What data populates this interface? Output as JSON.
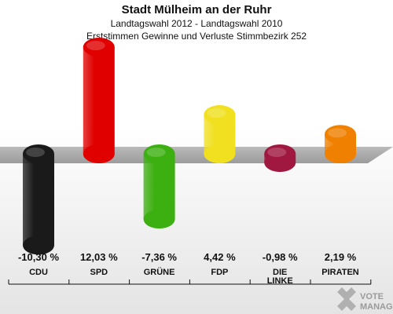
{
  "chart_data": {
    "type": "bar",
    "title": "Stadt Mülheim an der Ruhr",
    "subtitle": "Landtagswahl 2012 - Landtagswahl 2010",
    "subtitle2": "Erststimmen Gewinne und Verluste Stimmbezirk 252",
    "categories": [
      "CDU",
      "SPD",
      "GRÜNE",
      "FDP",
      "DIE LINKE",
      "PIRATEN"
    ],
    "category_lines": [
      [
        "CDU"
      ],
      [
        "SPD"
      ],
      [
        "GRÜNE"
      ],
      [
        "FDP"
      ],
      [
        "DIE",
        "LINKE"
      ],
      [
        "PIRATEN"
      ]
    ],
    "values": [
      -10.3,
      12.03,
      -7.36,
      4.42,
      -0.98,
      2.19
    ],
    "value_labels": [
      "-10,30 %",
      "12,03 %",
      "-7,36 %",
      "4,42 %",
      "-0,98 %",
      "2,19 %"
    ],
    "colors": [
      "#1a1a1a",
      "#e00000",
      "#3cb010",
      "#f0e020",
      "#a01840",
      "#f08000"
    ],
    "ylim": [
      -12,
      15
    ],
    "grid": false,
    "legend": "none"
  },
  "logo": {
    "line1": "VOTE",
    "line2": "MANAGER"
  }
}
